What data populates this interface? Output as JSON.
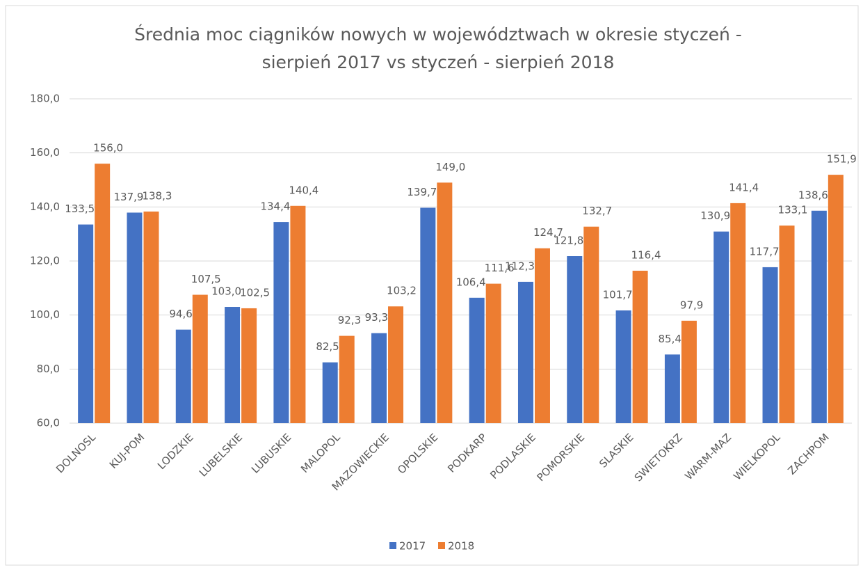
{
  "chart_data": {
    "type": "bar",
    "title": "Średnia moc ciągników nowych w województwach w okresie styczeń - sierpień 2017 vs styczeń - sierpień 2018",
    "categories": [
      "DOLNOSL",
      "KUJ-POM",
      "LODZKIE",
      "LUBELSKIE",
      "LUBUSKIE",
      "MALOPOL",
      "MAZOWIECKIE",
      "OPOLSKIE",
      "PODKARP",
      "PODLASKIE",
      "POMORSKIE",
      "SLASKIE",
      "SWIETOKRZ",
      "WARM-MAZ",
      "WIELKOPOL",
      "ZACHPOM"
    ],
    "series": [
      {
        "name": "2017",
        "color": "#4472c4",
        "values": [
          133.5,
          137.9,
          94.6,
          103.0,
          134.4,
          82.5,
          93.3,
          139.7,
          106.4,
          112.3,
          121.8,
          101.7,
          85.4,
          130.9,
          117.7,
          138.6
        ],
        "value_labels": [
          "133,5",
          "137,9",
          "94,6",
          "103,0",
          "134,4",
          "82,5",
          "93,3",
          "139,7",
          "106,4",
          "112,3",
          "121,8",
          "101,7",
          "85,4",
          "130,9",
          "117,7",
          "138,6"
        ]
      },
      {
        "name": "2018",
        "color": "#ed7d31",
        "values": [
          156.0,
          138.3,
          107.5,
          102.5,
          140.4,
          92.3,
          103.2,
          149.0,
          111.6,
          124.7,
          132.7,
          116.4,
          97.9,
          141.4,
          133.1,
          151.9
        ],
        "value_labels": [
          "156,0",
          "138,3",
          "107,5",
          "102,5",
          "140,4",
          "92,3",
          "103,2",
          "149,0",
          "111,6",
          "124,7",
          "132,7",
          "116,4",
          "97,9",
          "141,4",
          "133,1",
          "151,9"
        ]
      }
    ],
    "ylim": [
      60,
      180
    ],
    "yticks": [
      {
        "value": 60,
        "label": "60,0"
      },
      {
        "value": 80,
        "label": "80,0"
      },
      {
        "value": 100,
        "label": "100,0"
      },
      {
        "value": 120,
        "label": "120,0"
      },
      {
        "value": 140,
        "label": "140,0"
      },
      {
        "value": 160,
        "label": "160,0"
      },
      {
        "value": 180,
        "label": "180,0"
      }
    ],
    "grid": true,
    "legend": "bottom"
  }
}
